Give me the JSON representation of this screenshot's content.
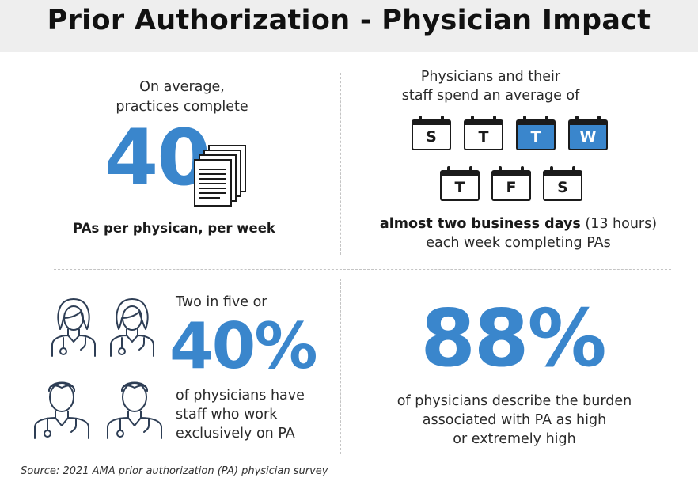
{
  "title": "Prior Authorization - Physician Impact",
  "panel_pas": {
    "intro_line1": "On average,",
    "intro_line2": "practices complete",
    "big_number": "40",
    "caption": "PAs per physican, per week",
    "icon": "document-stack-icon"
  },
  "panel_time": {
    "intro_line1": "Physicians and their",
    "intro_line2": "staff spend an average of",
    "days": [
      {
        "letter": "S",
        "highlight": false
      },
      {
        "letter": "T",
        "highlight": false
      },
      {
        "letter": "T",
        "highlight": true
      },
      {
        "letter": "W",
        "highlight": true
      },
      {
        "letter": "T",
        "highlight": false
      },
      {
        "letter": "F",
        "highlight": false
      },
      {
        "letter": "S",
        "highlight": false
      }
    ],
    "bold_text": "almost two business days",
    "paren_text": "(13 hours)",
    "line2": "each week completing PAs"
  },
  "panel_staff": {
    "intro": "Two in five or",
    "big_number": "40%",
    "line1": "of physicians have",
    "line2": "staff who work",
    "line3": "exclusively on PA",
    "icons": [
      "female-doctor-icon",
      "female-doctor-icon",
      "male-doctor-icon",
      "male-doctor-icon"
    ]
  },
  "panel_burden": {
    "big_number": "88%",
    "line1": "of physicians describe the burden",
    "line2": "associated with PA as high",
    "line3": "or extremely high"
  },
  "source": "Source: 2021 AMA prior authorization (PA) physician survey",
  "colors": {
    "accent": "#3a86cc",
    "header_bg": "#eeeeee",
    "ink": "#1b1b1b"
  }
}
